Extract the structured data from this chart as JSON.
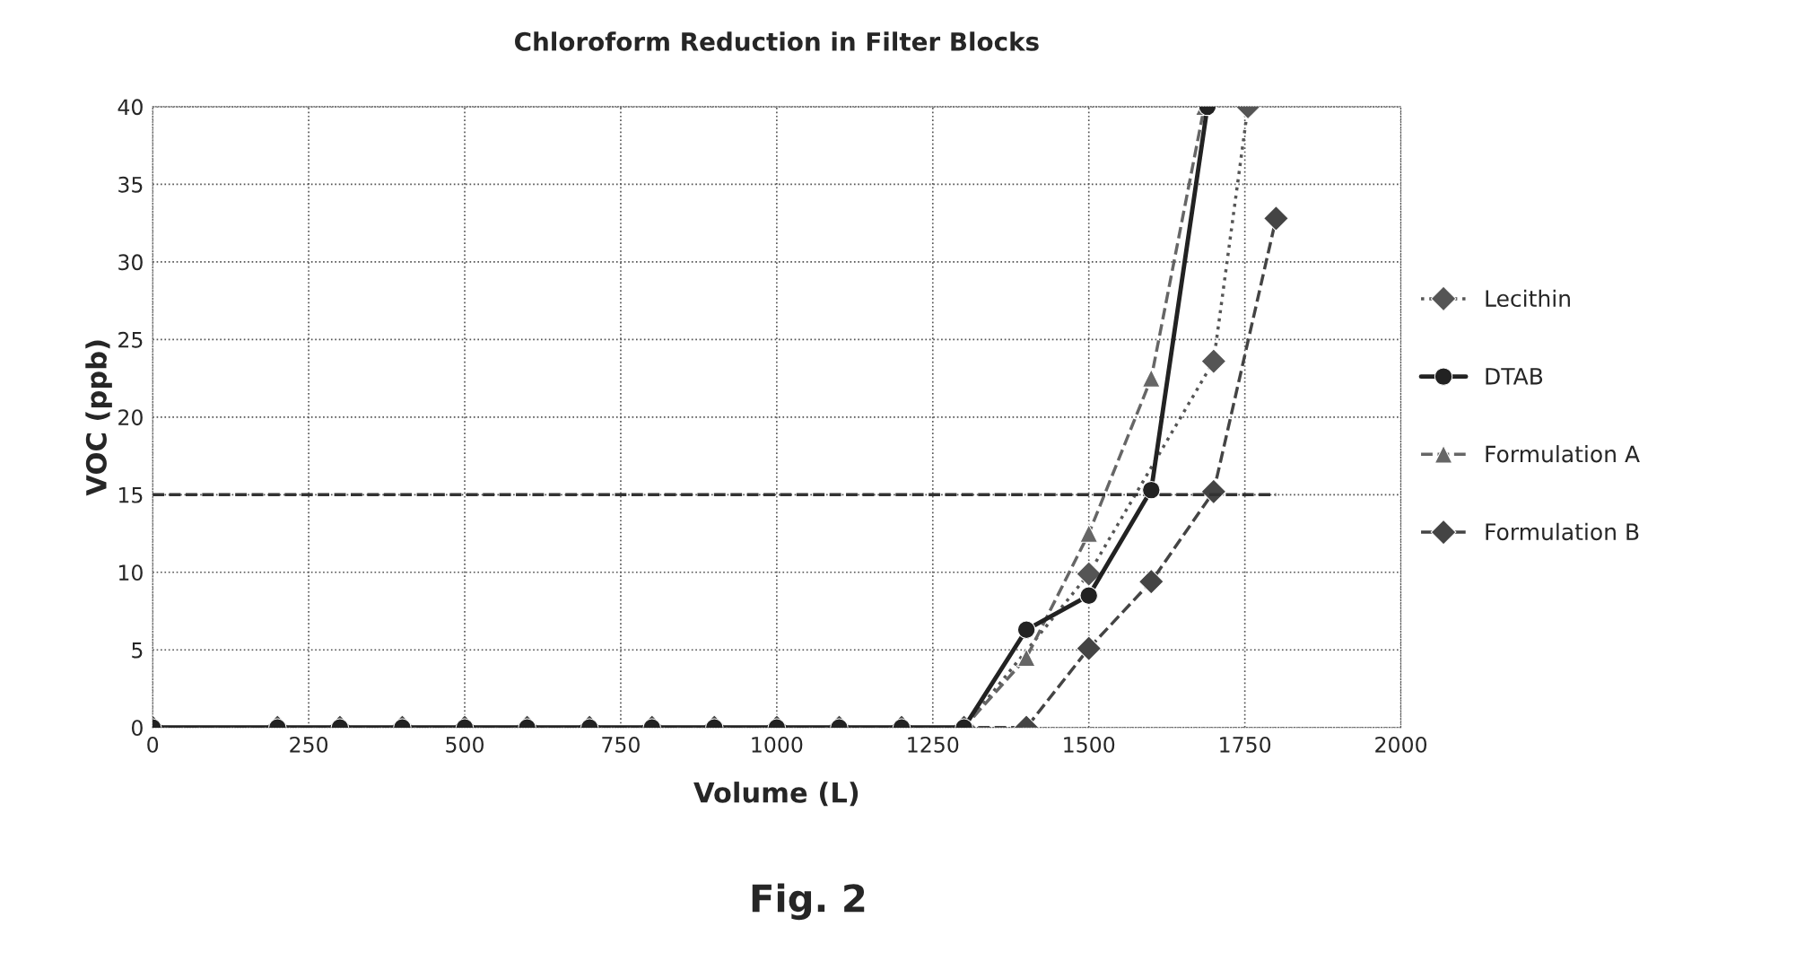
{
  "chart_data": {
    "type": "line",
    "title": "Chloroform Reduction in Filter Blocks",
    "xlabel": "Volume (L)",
    "ylabel": "VOC (ppb)",
    "xlim": [
      0,
      2000
    ],
    "xticks": [
      0,
      250,
      500,
      750,
      1000,
      1250,
      1500,
      1750,
      2000
    ],
    "ylim": [
      0,
      40
    ],
    "yticks": [
      0,
      5,
      10,
      15,
      20,
      25,
      30,
      35,
      40
    ],
    "grid": true,
    "legend": "right",
    "series": [
      {
        "name": "Lecithin",
        "color": "#555555",
        "marker": "diamond",
        "line_style": "dotted",
        "x": [
          0,
          200,
          300,
          400,
          500,
          600,
          700,
          800,
          900,
          1000,
          1100,
          1200,
          1300,
          1500,
          1700,
          1755
        ],
        "values": [
          0,
          0,
          0,
          0,
          0,
          0,
          0,
          0,
          0,
          0,
          0,
          0,
          0,
          9.9,
          23.6,
          40
        ]
      },
      {
        "name": "DTAB",
        "color": "#222222",
        "marker": "circle",
        "line_style": "solid",
        "x": [
          0,
          200,
          300,
          400,
          500,
          600,
          700,
          800,
          900,
          1000,
          1100,
          1200,
          1300,
          1400,
          1500,
          1600,
          1690
        ],
        "values": [
          0,
          0,
          0,
          0,
          0,
          0,
          0,
          0,
          0,
          0,
          0,
          0,
          0,
          6.3,
          8.5,
          15.3,
          40
        ]
      },
      {
        "name": "Formulation A",
        "color": "#666666",
        "marker": "triangle",
        "line_style": "dashed",
        "x": [
          0,
          200,
          300,
          400,
          500,
          600,
          700,
          800,
          900,
          1000,
          1100,
          1200,
          1300,
          1400,
          1500,
          1600,
          1685
        ],
        "values": [
          0,
          0,
          0,
          0,
          0,
          0,
          0,
          0,
          0,
          0,
          0,
          0,
          0,
          4.5,
          12.5,
          22.5,
          40
        ]
      },
      {
        "name": "Formulation B",
        "color": "#444444",
        "marker": "diamond",
        "line_style": "dashed",
        "x": [
          0,
          200,
          300,
          400,
          500,
          600,
          700,
          800,
          900,
          1000,
          1100,
          1200,
          1300,
          1400,
          1500,
          1600,
          1700,
          1800
        ],
        "values": [
          0,
          0,
          0,
          0,
          0,
          0,
          0,
          0,
          0,
          0,
          0,
          0,
          0,
          0,
          5.1,
          9.4,
          15.2,
          32.8
        ]
      },
      {
        "color": "#333333",
        "marker": "none",
        "line_style": "dashed",
        "x": [
          0,
          1800
        ],
        "values": [
          15,
          15
        ]
      }
    ],
    "annotations": [
      "Fig. 2"
    ]
  }
}
